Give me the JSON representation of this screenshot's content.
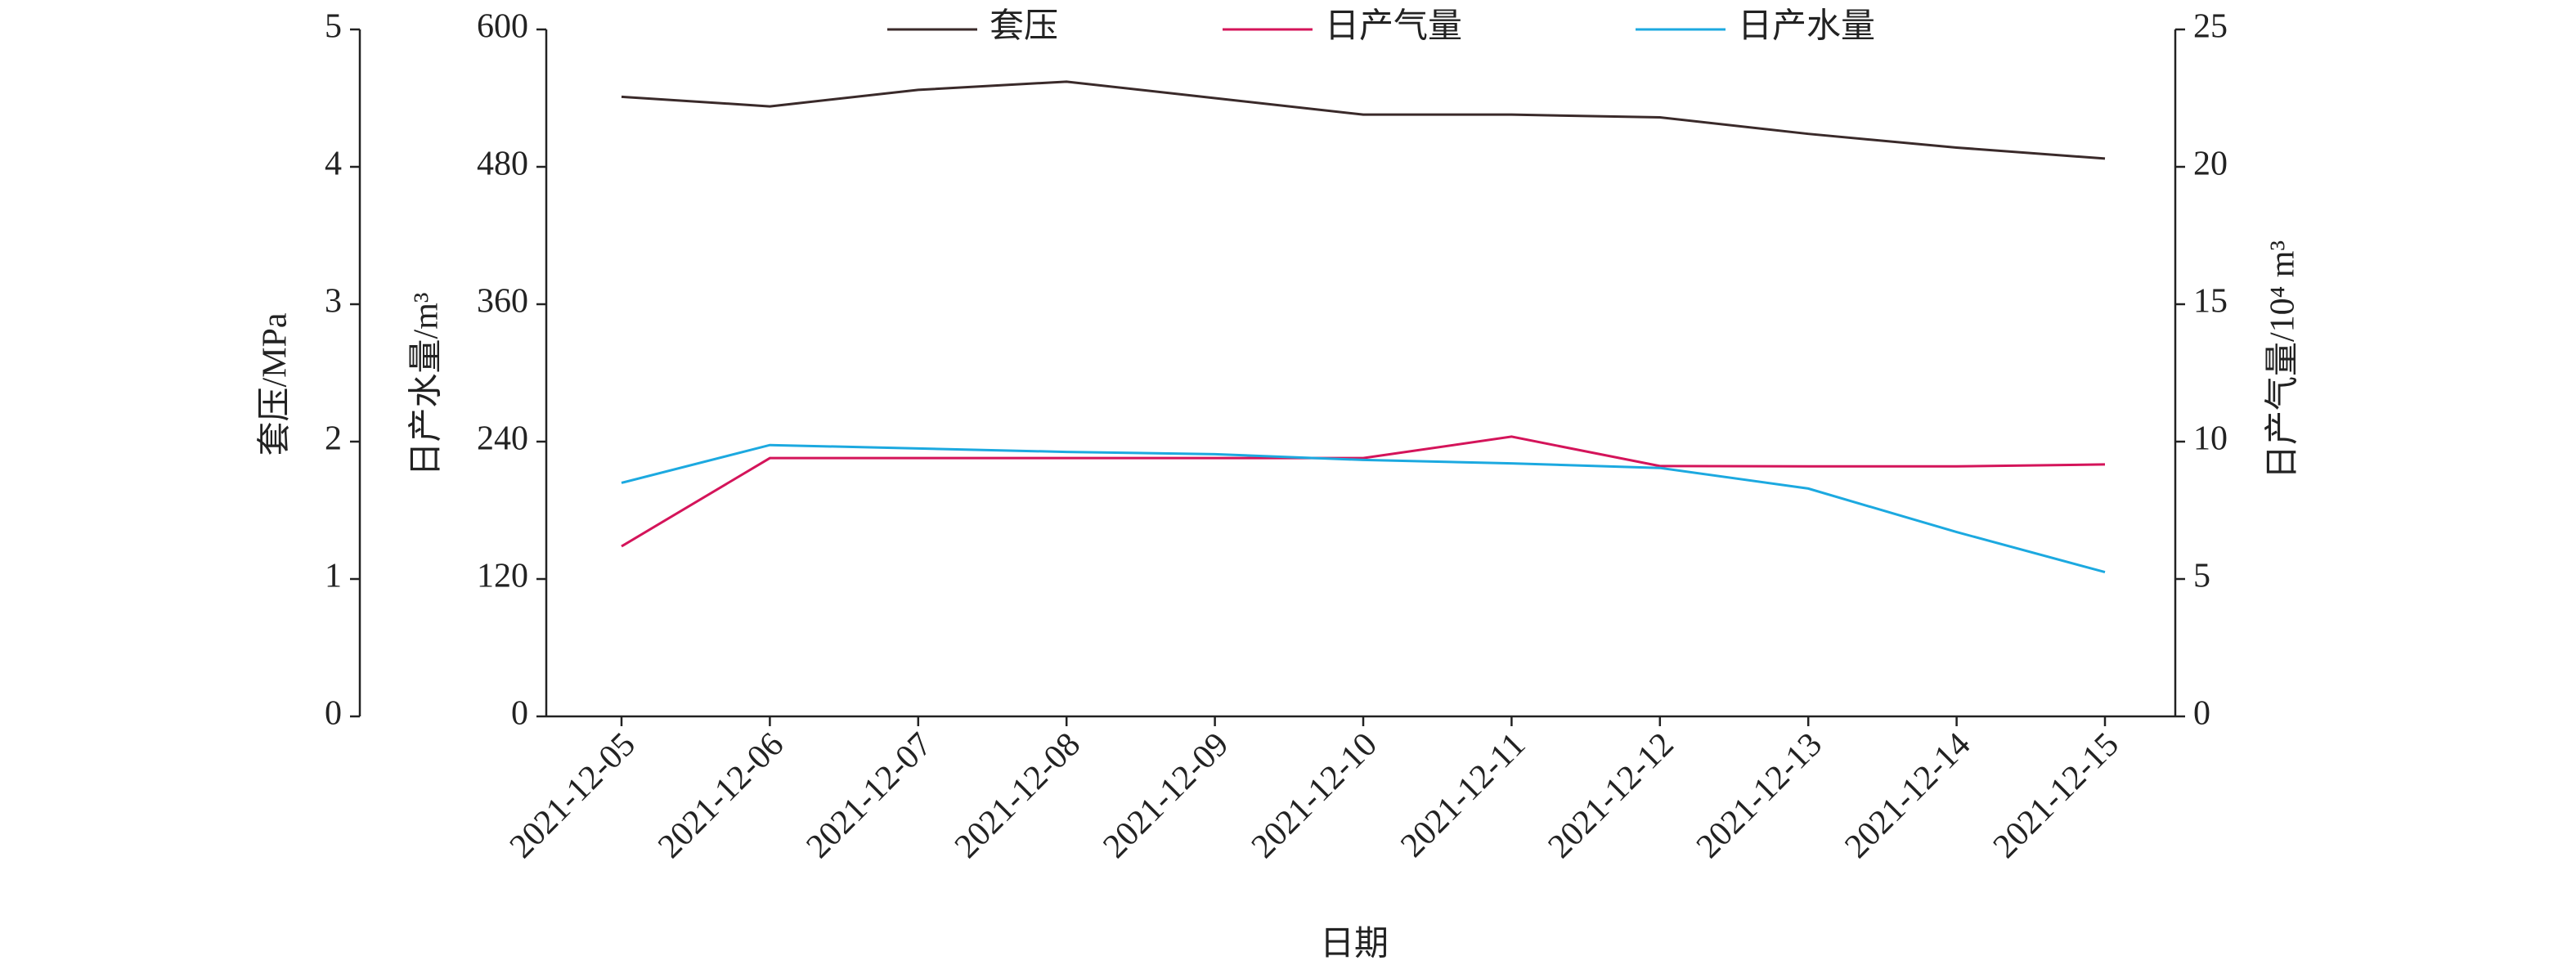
{
  "chart_data": {
    "type": "line",
    "x_label": "日期",
    "y_label": "套压/MPa",
    "y3_label": "日产水量/m³",
    "y2_label": "日产气量/10⁴ m³",
    "categories": [
      "2021-12-05",
      "2021-12-06",
      "2021-12-07",
      "2021-12-08",
      "2021-12-09",
      "2021-12-10",
      "2021-12-11",
      "2021-12-12",
      "2021-12-13",
      "2021-12-14",
      "2021-12-15"
    ],
    "ylim": [
      0,
      5
    ],
    "yticks": [
      0,
      1,
      2,
      3,
      4,
      5
    ],
    "y3lim": [
      0,
      600
    ],
    "y3ticks": [
      0,
      120,
      240,
      360,
      480,
      600
    ],
    "y2lim": [
      0,
      25
    ],
    "y2ticks": [
      0,
      5,
      10,
      15,
      20,
      25
    ],
    "series": [
      {
        "name": "套压",
        "color": "#3a2a2a",
        "axis": "y",
        "values": [
          4.51,
          4.44,
          4.56,
          4.62,
          4.5,
          4.38,
          4.38,
          4.36,
          4.24,
          4.14,
          4.06
        ]
      },
      {
        "name": "日产气量",
        "color": "#d4145a",
        "axis": "y2",
        "values": [
          6.19,
          9.4,
          9.4,
          9.4,
          9.4,
          9.4,
          10.18,
          9.11,
          9.1,
          9.1,
          9.17
        ]
      },
      {
        "name": "日产水量",
        "color": "#1ca9e0",
        "axis": "y3",
        "values": [
          204,
          237,
          234,
          231,
          229,
          224,
          221,
          217,
          199,
          161,
          126
        ]
      }
    ]
  }
}
